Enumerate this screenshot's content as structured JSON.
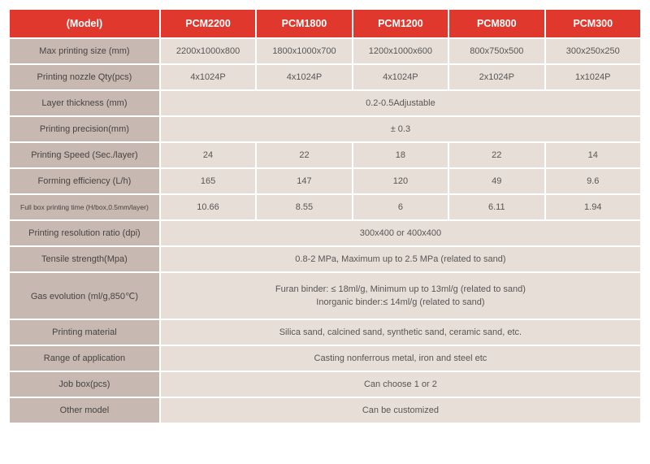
{
  "colors": {
    "header_bg": "#e0382d",
    "header_fg": "#ffffff",
    "label_bg": "#c7b9b1",
    "value_bg": "#e7ded8",
    "text": "#4a4a4a"
  },
  "table": {
    "header": [
      "(Model)",
      "PCM2200",
      "PCM1800",
      "PCM1200",
      "PCM800",
      "PCM300"
    ],
    "rows": [
      {
        "label": "Max printing size (mm)",
        "cells": [
          "2200x1000x800",
          "1800x1000x700",
          "1200x1000x600",
          "800x750x500",
          "300x250x250"
        ]
      },
      {
        "label": "Printing nozzle Qty(pcs)",
        "cells": [
          "4x1024P",
          "4x1024P",
          "4x1024P",
          "2x1024P",
          "1x1024P"
        ]
      },
      {
        "label": "Layer thickness (mm)",
        "merged": "0.2-0.5Adjustable"
      },
      {
        "label": "Printing precision(mm)",
        "merged": "± 0.3"
      },
      {
        "label": "Printing Speed (Sec./layer)",
        "cells": [
          "24",
          "22",
          "18",
          "22",
          "14"
        ]
      },
      {
        "label": "Forming efficiency (L/h)",
        "cells": [
          "165",
          "147",
          "120",
          "49",
          "9.6"
        ]
      },
      {
        "label": "Full box printing time (H/box,0.5mm/layer)",
        "small": true,
        "cells": [
          "10.66",
          "8.55",
          "6",
          "6.11",
          "1.94"
        ]
      },
      {
        "label": "Printing resolution ratio (dpi)",
        "merged": "300x400 or 400x400"
      },
      {
        "label": "Tensile strength(Mpa)",
        "merged": "0.8-2 MPa, Maximum up to 2.5 MPa (related to sand)"
      },
      {
        "label": "Gas evolution (ml/g,850℃)",
        "tall": true,
        "merged_lines": [
          "Furan binder: ≤ 18ml/g, Minimum up to 13ml/g (related  to sand)",
          "Inorganic binder:≤ 14ml/g (related to sand)"
        ]
      },
      {
        "label": "Printing material",
        "merged": "Silica sand, calcined sand, synthetic sand, ceramic sand, etc."
      },
      {
        "label": "Range of application",
        "merged": "Casting nonferrous metal, iron and  steel etc"
      },
      {
        "label": "Job box(pcs)",
        "merged": "Can choose 1 or 2"
      },
      {
        "label": "Other model",
        "merged": "Can be customized"
      }
    ]
  }
}
